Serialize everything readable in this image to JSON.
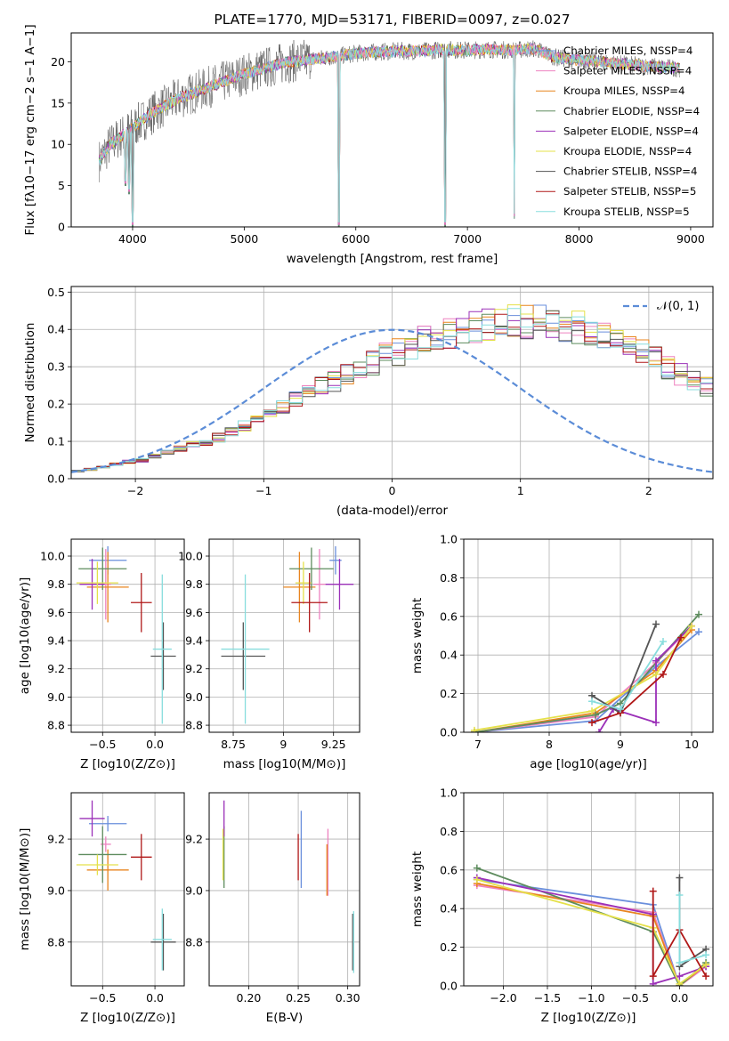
{
  "colors": {
    "Chabrier MILES": "#6a8fdc",
    "Salpeter MILES": "#ee82c0",
    "Kroupa MILES": "#e8851f",
    "Chabrier ELODIE": "#5e8c5e",
    "Salpeter ELODIE": "#9b30b8",
    "Kroupa ELODIE": "#e5e14a",
    "Chabrier STELIB": "#555555",
    "Salpeter STELIB": "#b01818",
    "Kroupa STELIB": "#88dddd",
    "normal": "#5b8cd7",
    "grid": "#b0b0b0"
  },
  "chart_data": [
    {
      "id": "spectrum",
      "type": "line",
      "title": "PLATE=1770, MJD=53171, FIBERID=0097, z=0.027",
      "xlabel": "wavelength [Angstrom, rest frame]",
      "ylabel": "Flux [fλ10−17 erg cm−2 s−1 A−1]",
      "xlim": [
        3450,
        9200
      ],
      "ylim": [
        0,
        23.5
      ],
      "xticks": [
        4000,
        5000,
        6000,
        7000,
        8000,
        9000
      ],
      "yticks": [
        0,
        5,
        10,
        15,
        20
      ],
      "grid": false,
      "legend_position": "right",
      "legend": [
        "Chabrier MILES, NSSP=4",
        "Salpeter MILES, NSSP=4",
        "Kroupa MILES, NSSP=4",
        "Chabrier ELODIE, NSSP=4",
        "Salpeter ELODIE, NSSP=4",
        "Kroupa ELODIE, NSSP=4",
        "Chabrier STELIB, NSSP=4",
        "Salpeter STELIB, NSSP=5",
        "Kroupa STELIB, NSSP=5"
      ],
      "continuum": [
        [
          3700,
          8
        ],
        [
          3800,
          10
        ],
        [
          3900,
          11
        ],
        [
          4000,
          12
        ],
        [
          4100,
          13
        ],
        [
          4200,
          14
        ],
        [
          4400,
          15.5
        ],
        [
          4600,
          16.5
        ],
        [
          4800,
          17.5
        ],
        [
          5000,
          18.5
        ],
        [
          5200,
          19.3
        ],
        [
          5400,
          20
        ],
        [
          5600,
          20.3
        ],
        [
          5800,
          20.6
        ],
        [
          6000,
          21
        ],
        [
          6200,
          21.2
        ],
        [
          6400,
          21.3
        ],
        [
          6600,
          21.3
        ],
        [
          6800,
          21.5
        ],
        [
          7000,
          21.4
        ],
        [
          7200,
          21.5
        ],
        [
          7400,
          21.4
        ],
        [
          7600,
          21.6
        ],
        [
          7800,
          20.5
        ],
        [
          8000,
          20.2
        ],
        [
          8200,
          20
        ],
        [
          8400,
          19.7
        ],
        [
          8600,
          19.5
        ],
        [
          8800,
          19.3
        ],
        [
          8900,
          19.2
        ]
      ],
      "dips": [
        [
          3934,
          5
        ],
        [
          3968,
          4
        ],
        [
          4000,
          0
        ],
        [
          5850,
          0
        ],
        [
          6800,
          0
        ],
        [
          7420,
          1
        ]
      ]
    },
    {
      "id": "residuals",
      "type": "histogram",
      "xlabel": "(data-model)/error",
      "ylabel": "Normed distribution",
      "xlim": [
        -2.5,
        2.5
      ],
      "ylim": [
        0,
        0.515
      ],
      "xticks": [
        -2,
        -1,
        0,
        1,
        2
      ],
      "yticks": [
        0.0,
        0.1,
        0.2,
        0.3,
        0.4,
        0.5
      ],
      "grid": true,
      "legend_position": "top-right",
      "legend": [
        "𝒩(0, 1)"
      ],
      "bin_width": 0.1,
      "bin_start": -2.6,
      "profile": [
        0.015,
        0.02,
        0.025,
        0.03,
        0.04,
        0.045,
        0.05,
        0.06,
        0.07,
        0.08,
        0.09,
        0.1,
        0.11,
        0.125,
        0.14,
        0.155,
        0.17,
        0.19,
        0.21,
        0.225,
        0.245,
        0.26,
        0.28,
        0.3,
        0.31,
        0.33,
        0.34,
        0.355,
        0.37,
        0.38,
        0.39,
        0.4,
        0.405,
        0.41,
        0.415,
        0.42,
        0.42,
        0.42,
        0.415,
        0.41,
        0.405,
        0.395,
        0.385,
        0.375,
        0.36,
        0.34,
        0.32,
        0.3,
        0.28,
        0.26,
        0.245,
        0.23,
        0.21,
        0.19,
        0.17,
        0.155,
        0.14,
        0.12,
        0.11,
        0.095,
        0.085,
        0.075,
        0.065,
        0.055,
        0.045,
        0.04,
        0.035,
        0.03,
        0.028,
        0.025,
        0.022,
        0.02,
        0.018,
        0.015
      ]
    },
    {
      "id": "age-vs-z",
      "type": "errorbar",
      "xlabel": "Z [log10(Z/Z⊙)]",
      "ylabel": "age  [log10(age/yr)]",
      "xlim": [
        -0.8,
        0.28
      ],
      "ylim": [
        8.75,
        10.12
      ],
      "xticks": [
        -0.5,
        0.0
      ],
      "xtick_labels": [
        "−0.5",
        "0.0"
      ],
      "yticks": [
        8.8,
        9.0,
        9.2,
        9.4,
        9.6,
        9.8,
        10.0
      ],
      "grid": true,
      "points": [
        {
          "model": "Chabrier MILES",
          "x": -0.45,
          "xerr": 0.18,
          "y": 9.97,
          "yerr": 0.1
        },
        {
          "model": "Salpeter MILES",
          "x": -0.47,
          "xerr": 0.05,
          "y": 9.8,
          "yerr": 0.25
        },
        {
          "model": "Kroupa MILES",
          "x": -0.45,
          "xerr": 0.2,
          "y": 9.78,
          "yerr": 0.25
        },
        {
          "model": "Chabrier ELODIE",
          "x": -0.5,
          "xerr": 0.23,
          "y": 9.91,
          "yerr": 0.15
        },
        {
          "model": "Salpeter ELODIE",
          "x": -0.6,
          "xerr": 0.12,
          "y": 9.8,
          "yerr": 0.18
        },
        {
          "model": "Kroupa ELODIE",
          "x": -0.55,
          "xerr": 0.2,
          "y": 9.81,
          "yerr": 0.15
        },
        {
          "model": "Chabrier STELIB",
          "x": 0.08,
          "xerr": 0.12,
          "y": 9.29,
          "yerr": 0.24
        },
        {
          "model": "Salpeter STELIB",
          "x": -0.13,
          "xerr": 0.1,
          "y": 9.67,
          "yerr": 0.21
        },
        {
          "model": "Kroupa STELIB",
          "x": 0.07,
          "xerr": 0.09,
          "y": 9.34,
          "yerr": 0.53
        }
      ]
    },
    {
      "id": "age-vs-mass",
      "type": "errorbar",
      "xlabel": "mass [log10(M/M⊙)]",
      "ylabel": "",
      "xlim": [
        8.63,
        9.38
      ],
      "ylim": [
        8.75,
        10.12
      ],
      "xticks": [
        8.75,
        9.0,
        9.25
      ],
      "yticks": [
        8.8,
        9.0,
        9.2,
        9.4,
        9.6,
        9.8,
        10.0
      ],
      "grid": true,
      "points": [
        {
          "model": "Chabrier MILES",
          "x": 9.26,
          "xerr": 0.03,
          "y": 9.97,
          "yerr": 0.1
        },
        {
          "model": "Salpeter MILES",
          "x": 9.18,
          "xerr": 0.03,
          "y": 9.8,
          "yerr": 0.25
        },
        {
          "model": "Kroupa MILES",
          "x": 9.08,
          "xerr": 0.08,
          "y": 9.78,
          "yerr": 0.25
        },
        {
          "model": "Chabrier ELODIE",
          "x": 9.14,
          "xerr": 0.11,
          "y": 9.91,
          "yerr": 0.15
        },
        {
          "model": "Salpeter ELODIE",
          "x": 9.28,
          "xerr": 0.07,
          "y": 9.8,
          "yerr": 0.18
        },
        {
          "model": "Kroupa ELODIE",
          "x": 9.1,
          "xerr": 0.04,
          "y": 9.81,
          "yerr": 0.15
        },
        {
          "model": "Chabrier STELIB",
          "x": 8.8,
          "xerr": 0.11,
          "y": 9.29,
          "yerr": 0.24
        },
        {
          "model": "Salpeter STELIB",
          "x": 9.13,
          "xerr": 0.09,
          "y": 9.67,
          "yerr": 0.21
        },
        {
          "model": "Kroupa STELIB",
          "x": 8.81,
          "xerr": 0.12,
          "y": 9.34,
          "yerr": 0.53
        }
      ]
    },
    {
      "id": "weight-vs-age",
      "type": "line",
      "xlabel": "age  [log10(age/yr)]",
      "ylabel": "mass weight",
      "xlim": [
        6.8,
        10.3
      ],
      "ylim": [
        0,
        1.0
      ],
      "xticks": [
        7,
        8,
        9,
        10
      ],
      "yticks": [
        0.0,
        0.2,
        0.4,
        0.6,
        0.8,
        1.0
      ],
      "grid": true,
      "series": [
        {
          "model": "Chabrier MILES",
          "points": [
            [
              6.95,
              0.0
            ],
            [
              8.65,
              0.06
            ],
            [
              9.5,
              0.34
            ],
            [
              10.1,
              0.52
            ]
          ]
        },
        {
          "model": "Salpeter MILES",
          "points": [
            [
              6.95,
              0.0
            ],
            [
              8.65,
              0.08
            ],
            [
              9.5,
              0.36
            ],
            [
              10.0,
              0.55
            ]
          ]
        },
        {
          "model": "Kroupa MILES",
          "points": [
            [
              6.95,
              0.0
            ],
            [
              8.65,
              0.1
            ],
            [
              9.5,
              0.32
            ],
            [
              10.0,
              0.53
            ]
          ]
        },
        {
          "model": "Chabrier ELODIE",
          "points": [
            [
              6.95,
              0.0
            ],
            [
              8.65,
              0.09
            ],
            [
              9.0,
              0.15
            ],
            [
              10.1,
              0.61
            ]
          ]
        },
        {
          "model": "Salpeter ELODIE",
          "points": [
            [
              8.7,
              0.0
            ],
            [
              8.9,
              0.12
            ],
            [
              9.5,
              0.05
            ],
            [
              9.5,
              0.37
            ],
            [
              10.0,
              0.55
            ]
          ]
        },
        {
          "model": "Kroupa ELODIE",
          "points": [
            [
              6.95,
              0.01
            ],
            [
              8.6,
              0.11
            ],
            [
              9.5,
              0.3
            ],
            [
              10.0,
              0.55
            ]
          ]
        },
        {
          "model": "Chabrier STELIB",
          "points": [
            [
              8.6,
              0.19
            ],
            [
              9.0,
              0.1
            ],
            [
              9.5,
              0.56
            ]
          ]
        },
        {
          "model": "Salpeter STELIB",
          "points": [
            [
              8.6,
              0.05
            ],
            [
              9.0,
              0.1
            ],
            [
              9.6,
              0.3
            ],
            [
              9.85,
              0.49
            ]
          ]
        },
        {
          "model": "Kroupa STELIB",
          "points": [
            [
              8.6,
              0.16
            ],
            [
              9.0,
              0.12
            ],
            [
              9.6,
              0.47
            ]
          ]
        }
      ]
    },
    {
      "id": "mass-vs-z",
      "type": "errorbar",
      "xlabel": "Z [log10(Z/Z⊙)]",
      "ylabel": "mass [log10(M/M⊙)]",
      "xlim": [
        -0.8,
        0.28
      ],
      "ylim": [
        8.63,
        9.38
      ],
      "xticks": [
        -0.5,
        0.0
      ],
      "xtick_labels": [
        "−0.5",
        "0.0"
      ],
      "yticks": [
        8.8,
        9.0,
        9.2
      ],
      "grid": true,
      "points": [
        {
          "model": "Chabrier MILES",
          "x": -0.45,
          "xerr": 0.18,
          "y": 9.26,
          "yerr": 0.03
        },
        {
          "model": "Salpeter MILES",
          "x": -0.47,
          "xerr": 0.05,
          "y": 9.18,
          "yerr": 0.03
        },
        {
          "model": "Kroupa MILES",
          "x": -0.45,
          "xerr": 0.2,
          "y": 9.08,
          "yerr": 0.08
        },
        {
          "model": "Chabrier ELODIE",
          "x": -0.5,
          "xerr": 0.23,
          "y": 9.14,
          "yerr": 0.11
        },
        {
          "model": "Salpeter ELODIE",
          "x": -0.6,
          "xerr": 0.12,
          "y": 9.28,
          "yerr": 0.07
        },
        {
          "model": "Kroupa ELODIE",
          "x": -0.55,
          "xerr": 0.2,
          "y": 9.1,
          "yerr": 0.04
        },
        {
          "model": "Chabrier STELIB",
          "x": 0.08,
          "xerr": 0.12,
          "y": 8.8,
          "yerr": 0.11
        },
        {
          "model": "Salpeter STELIB",
          "x": -0.13,
          "xerr": 0.1,
          "y": 9.13,
          "yerr": 0.09
        },
        {
          "model": "Kroupa STELIB",
          "x": 0.07,
          "xerr": 0.09,
          "y": 8.81,
          "yerr": 0.12
        }
      ]
    },
    {
      "id": "mass-vs-ebv",
      "type": "errorbar",
      "xlabel": "E(B-V)",
      "ylabel": "",
      "xlim": [
        0.16,
        0.312
      ],
      "ylim": [
        8.63,
        9.38
      ],
      "xticks": [
        0.2,
        0.25,
        0.3
      ],
      "xtick_labels": [
        "0.20",
        "0.25",
        "0.30"
      ],
      "yticks": [
        8.8,
        9.0,
        9.2
      ],
      "grid": true,
      "points": [
        {
          "model": "Chabrier MILES",
          "x": 0.253,
          "xerr": 0.0,
          "y": 9.16,
          "yerr": 0.15
        },
        {
          "model": "Salpeter MILES",
          "x": 0.28,
          "xerr": 0.0,
          "y": 9.11,
          "yerr": 0.13
        },
        {
          "model": "Kroupa MILES",
          "x": 0.279,
          "xerr": 0.0,
          "y": 9.08,
          "yerr": 0.1
        },
        {
          "model": "Chabrier ELODIE",
          "x": 0.175,
          "xerr": 0.0,
          "y": 9.13,
          "yerr": 0.12
        },
        {
          "model": "Salpeter ELODIE",
          "x": 0.175,
          "xerr": 0.0,
          "y": 9.28,
          "yerr": 0.07
        },
        {
          "model": "Kroupa ELODIE",
          "x": 0.174,
          "xerr": 0.0,
          "y": 9.14,
          "yerr": 0.1
        },
        {
          "model": "Chabrier STELIB",
          "x": 0.305,
          "xerr": 0.0,
          "y": 8.8,
          "yerr": 0.11
        },
        {
          "model": "Salpeter STELIB",
          "x": 0.25,
          "xerr": 0.0,
          "y": 9.13,
          "yerr": 0.09
        },
        {
          "model": "Kroupa STELIB",
          "x": 0.306,
          "xerr": 0.0,
          "y": 8.8,
          "yerr": 0.12
        }
      ]
    },
    {
      "id": "weight-vs-z",
      "type": "line",
      "xlabel": "Z [log10(Z/Z⊙)]",
      "ylabel": "mass weight",
      "xlim": [
        -2.45,
        0.38
      ],
      "ylim": [
        0,
        1.0
      ],
      "xticks": [
        -2.0,
        -1.5,
        -1.0,
        -0.5,
        0.0
      ],
      "xtick_labels": [
        "−2.0",
        "−1.5",
        "−1.0",
        "−0.5",
        "0.0"
      ],
      "yticks": [
        0.0,
        0.2,
        0.4,
        0.6,
        0.8,
        1.0
      ],
      "grid": true,
      "series": [
        {
          "model": "Chabrier MILES",
          "points": [
            [
              -2.3,
              0.55
            ],
            [
              -0.3,
              0.42
            ],
            [
              0.0,
              0.0
            ],
            [
              0.3,
              0.1
            ]
          ]
        },
        {
          "model": "Salpeter MILES",
          "points": [
            [
              -2.3,
              0.52
            ],
            [
              -0.3,
              0.38
            ],
            [
              0.0,
              0.0
            ],
            [
              0.3,
              0.1
            ]
          ]
        },
        {
          "model": "Kroupa MILES",
          "points": [
            [
              -2.3,
              0.53
            ],
            [
              -0.3,
              0.36
            ],
            [
              0.0,
              0.0
            ],
            [
              0.3,
              0.11
            ]
          ]
        },
        {
          "model": "Chabrier ELODIE",
          "points": [
            [
              -2.3,
              0.61
            ],
            [
              -0.3,
              0.28
            ],
            [
              0.0,
              0.0
            ],
            [
              0.3,
              0.12
            ]
          ]
        },
        {
          "model": "Salpeter ELODIE",
          "points": [
            [
              -2.3,
              0.56
            ],
            [
              -0.3,
              0.37
            ],
            [
              -0.3,
              0.01
            ],
            [
              0.0,
              0.05
            ],
            [
              0.3,
              0.1
            ]
          ]
        },
        {
          "model": "Kroupa ELODIE",
          "points": [
            [
              -2.3,
              0.55
            ],
            [
              -0.3,
              0.3
            ],
            [
              0.0,
              0.01
            ],
            [
              0.3,
              0.11
            ]
          ]
        },
        {
          "model": "Chabrier STELIB",
          "points": [
            [
              0.0,
              0.56
            ],
            [
              0.0,
              0.1
            ],
            [
              0.3,
              0.19
            ]
          ]
        },
        {
          "model": "Salpeter STELIB",
          "points": [
            [
              -0.3,
              0.49
            ],
            [
              -0.3,
              0.05
            ],
            [
              0.0,
              0.29
            ],
            [
              0.3,
              0.05
            ]
          ]
        },
        {
          "model": "Kroupa STELIB",
          "points": [
            [
              0.0,
              0.47
            ],
            [
              0.0,
              0.12
            ],
            [
              0.3,
              0.16
            ]
          ]
        }
      ]
    }
  ]
}
